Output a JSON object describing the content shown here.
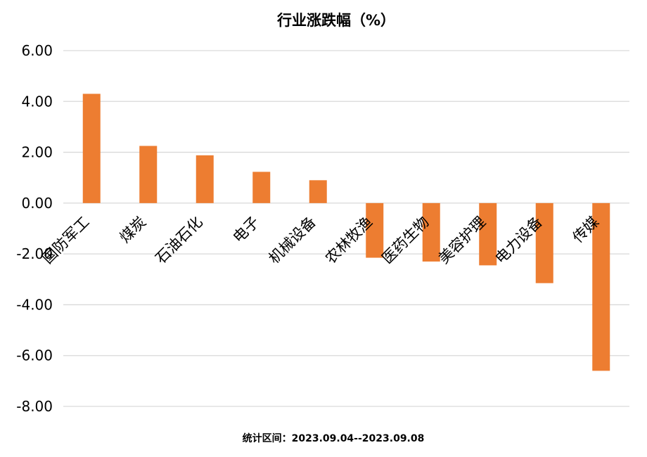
{
  "chart_data": {
    "type": "bar",
    "title": "行业涨跌幅（%）",
    "categories": [
      "国防军工",
      "煤炭",
      "石油石化",
      "电子",
      "机械设备",
      "农林牧渔",
      "医药生物",
      "美容护理",
      "电力设备",
      "传媒"
    ],
    "values": [
      4.3,
      2.25,
      1.88,
      1.23,
      0.9,
      -2.15,
      -2.3,
      -2.45,
      -3.15,
      -6.6
    ],
    "ylim": [
      -8,
      6
    ],
    "yticks": [
      6,
      4,
      2,
      0,
      -2,
      -4,
      -6,
      -8
    ],
    "ytick_labels": [
      "6.00",
      "4.00",
      "2.00",
      "0.00",
      "-2.00",
      "-4.00",
      "-6.00",
      "-8.00"
    ],
    "grid": true,
    "xlabel": "",
    "ylabel": "",
    "bar_color": "#ED7D31",
    "footnote": "统计区间：2023.09.04--2023.09.08"
  }
}
